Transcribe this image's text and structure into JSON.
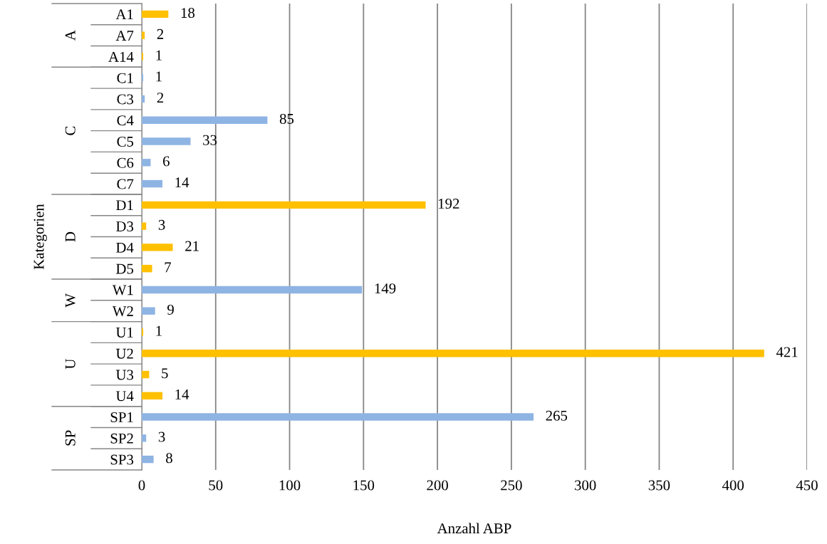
{
  "chart_data": {
    "type": "bar",
    "orientation": "horizontal",
    "ylabel": "Kategorien",
    "xlabel": "Anzahl ABP",
    "categories": [
      "A1",
      "A7",
      "A14",
      "C1",
      "C3",
      "C4",
      "C5",
      "C6",
      "C7",
      "D1",
      "D3",
      "D4",
      "D5",
      "W1",
      "W2",
      "U1",
      "U2",
      "U3",
      "U4",
      "SP1",
      "SP2",
      "SP3"
    ],
    "values": [
      18,
      2,
      1,
      1,
      2,
      85,
      33,
      6,
      14,
      192,
      3,
      21,
      7,
      149,
      9,
      1,
      421,
      5,
      14,
      265,
      3,
      8
    ],
    "colors": [
      "#ffc000",
      "#ffc000",
      "#ffc000",
      "#8eb4e3",
      "#8eb4e3",
      "#8eb4e3",
      "#8eb4e3",
      "#8eb4e3",
      "#8eb4e3",
      "#ffc000",
      "#ffc000",
      "#ffc000",
      "#ffc000",
      "#8eb4e3",
      "#8eb4e3",
      "#ffc000",
      "#ffc000",
      "#ffc000",
      "#ffc000",
      "#8eb4e3",
      "#8eb4e3",
      "#8eb4e3"
    ],
    "xlim": [
      0,
      450
    ],
    "xticks": [
      0,
      50,
      100,
      150,
      200,
      250,
      300,
      350,
      400,
      450
    ],
    "grid": "x",
    "data_labels": true,
    "annotations": [
      "A",
      "C",
      "D",
      "W",
      "U",
      "SP"
    ]
  }
}
